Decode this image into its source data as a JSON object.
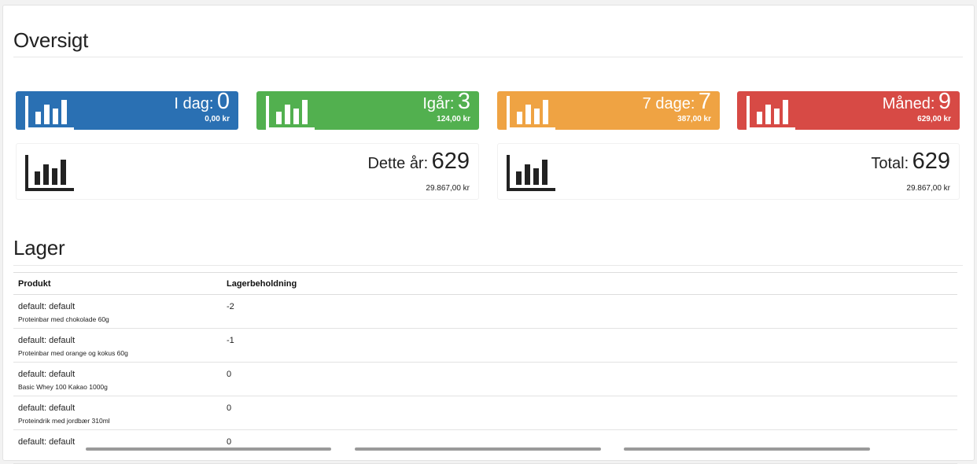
{
  "overview": {
    "title": "Oversigt",
    "stats": [
      {
        "label": "I dag:",
        "count": "0",
        "amount": "0,00 kr",
        "color": "#2a70b3"
      },
      {
        "label": "Igår:",
        "count": "3",
        "amount": "124,00 kr",
        "color": "#52b04f"
      },
      {
        "label": "7 dage:",
        "count": "7",
        "amount": "387,00 kr",
        "color": "#efa343"
      },
      {
        "label": "Måned:",
        "count": "9",
        "amount": "629,00 kr",
        "color": "#d74a45"
      }
    ],
    "year": {
      "label": "Dette år:",
      "count": "629",
      "amount": "29.867,00 kr"
    },
    "total": {
      "label": "Total:",
      "count": "629",
      "amount": "29.867,00 kr"
    },
    "icon": "bar-chart-icon"
  },
  "stock": {
    "title": "Lager",
    "headers": {
      "product": "Produkt",
      "stock": "Lagerbeholdning"
    },
    "rows": [
      {
        "variant": "default: default",
        "name": "Proteinbar med chokolade 60g",
        "qty": "-2"
      },
      {
        "variant": "default: default",
        "name": "Proteinbar med orange og kokus 60g",
        "qty": "-1"
      },
      {
        "variant": "default: default",
        "name": "Basic Whey 100 Kakao 1000g",
        "qty": "0"
      },
      {
        "variant": "default: default",
        "name": "Proteindrik med jordbær 310ml",
        "qty": "0"
      },
      {
        "variant": "default: default",
        "name": "",
        "qty": "0"
      }
    ]
  }
}
